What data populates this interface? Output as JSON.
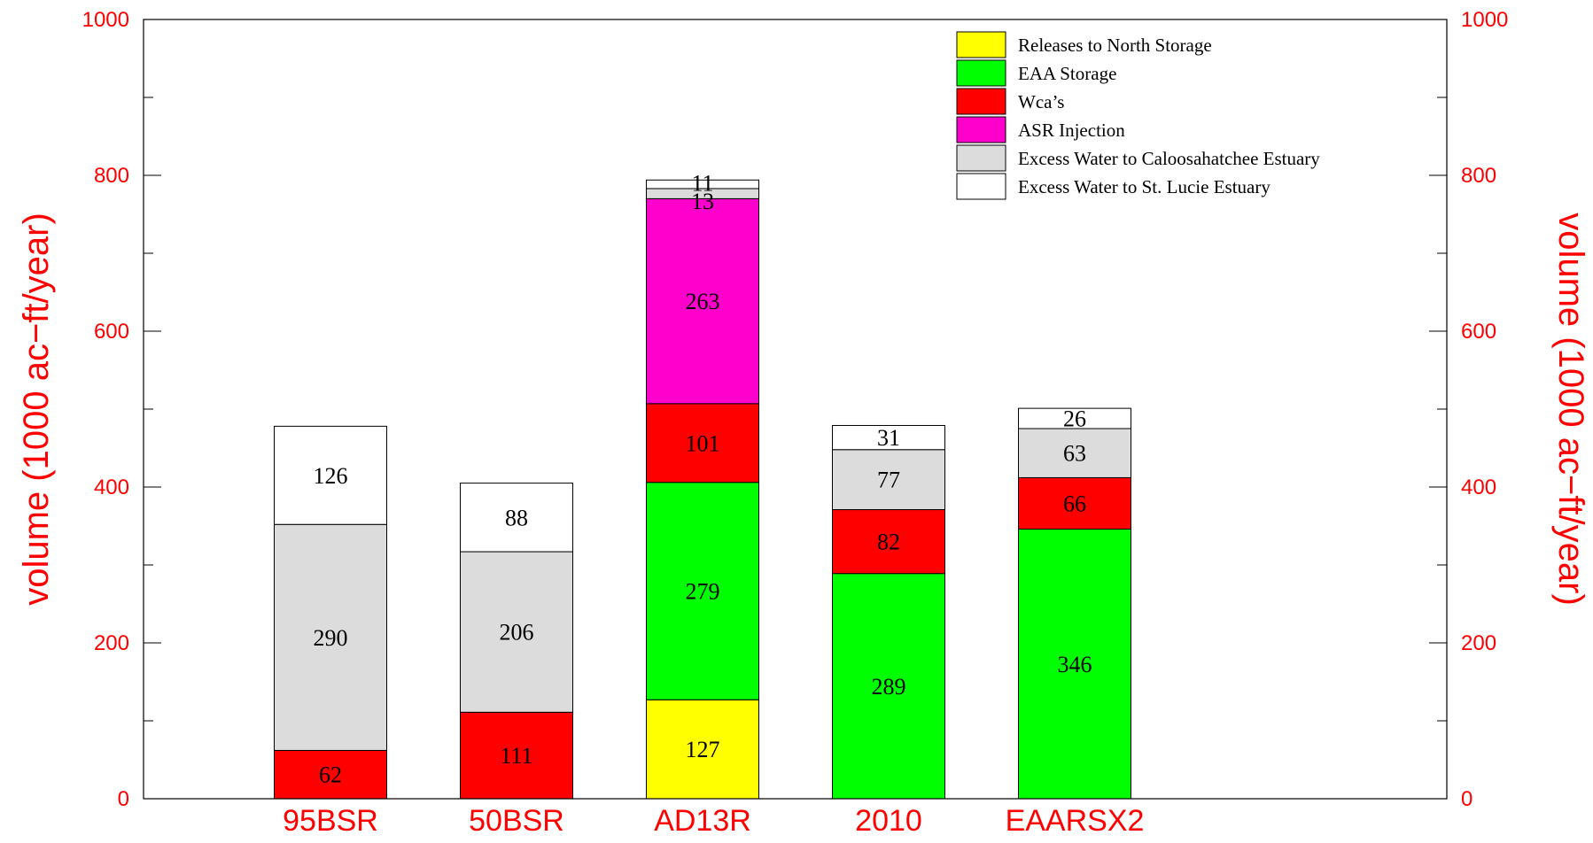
{
  "chart_data": {
    "type": "bar",
    "stacked": true,
    "categories": [
      "95BSR",
      "50BSR",
      "AD13R",
      "2010",
      "EAARSX2"
    ],
    "series": [
      {
        "name": "Releases to North Storage",
        "color": "#ffff00",
        "values": [
          0,
          0,
          127,
          0,
          0
        ]
      },
      {
        "name": "EAA Storage",
        "color": "#00ff00",
        "values": [
          0,
          0,
          279,
          289,
          346
        ]
      },
      {
        "name": "Wca’s",
        "color": "#ff0000",
        "values": [
          62,
          111,
          101,
          82,
          66
        ]
      },
      {
        "name": "ASR Injection",
        "color": "#ff00cc",
        "values": [
          0,
          0,
          263,
          0,
          0
        ]
      },
      {
        "name": "Excess Water to Caloosahatchee Estuary",
        "color": "#dcdcdc",
        "values": [
          290,
          206,
          13,
          77,
          63
        ]
      },
      {
        "name": "Excess Water to St. Lucie Estuary",
        "color": "#ffffff",
        "values": [
          126,
          88,
          11,
          31,
          26
        ]
      }
    ],
    "ylabel": "volume (1000 ac−ft/year)",
    "ylabel_right": "volume (1000 ac−ft/year)",
    "ylim": [
      0,
      1000
    ],
    "yticks": [
      0,
      200,
      400,
      600,
      800,
      1000
    ],
    "ytick_labels": [
      "0",
      "200",
      "400",
      "600",
      "800",
      "1000"
    ],
    "minor_tick_step": 100,
    "grid": false,
    "legend_position": "top-right",
    "label_color": "#ff0000"
  }
}
